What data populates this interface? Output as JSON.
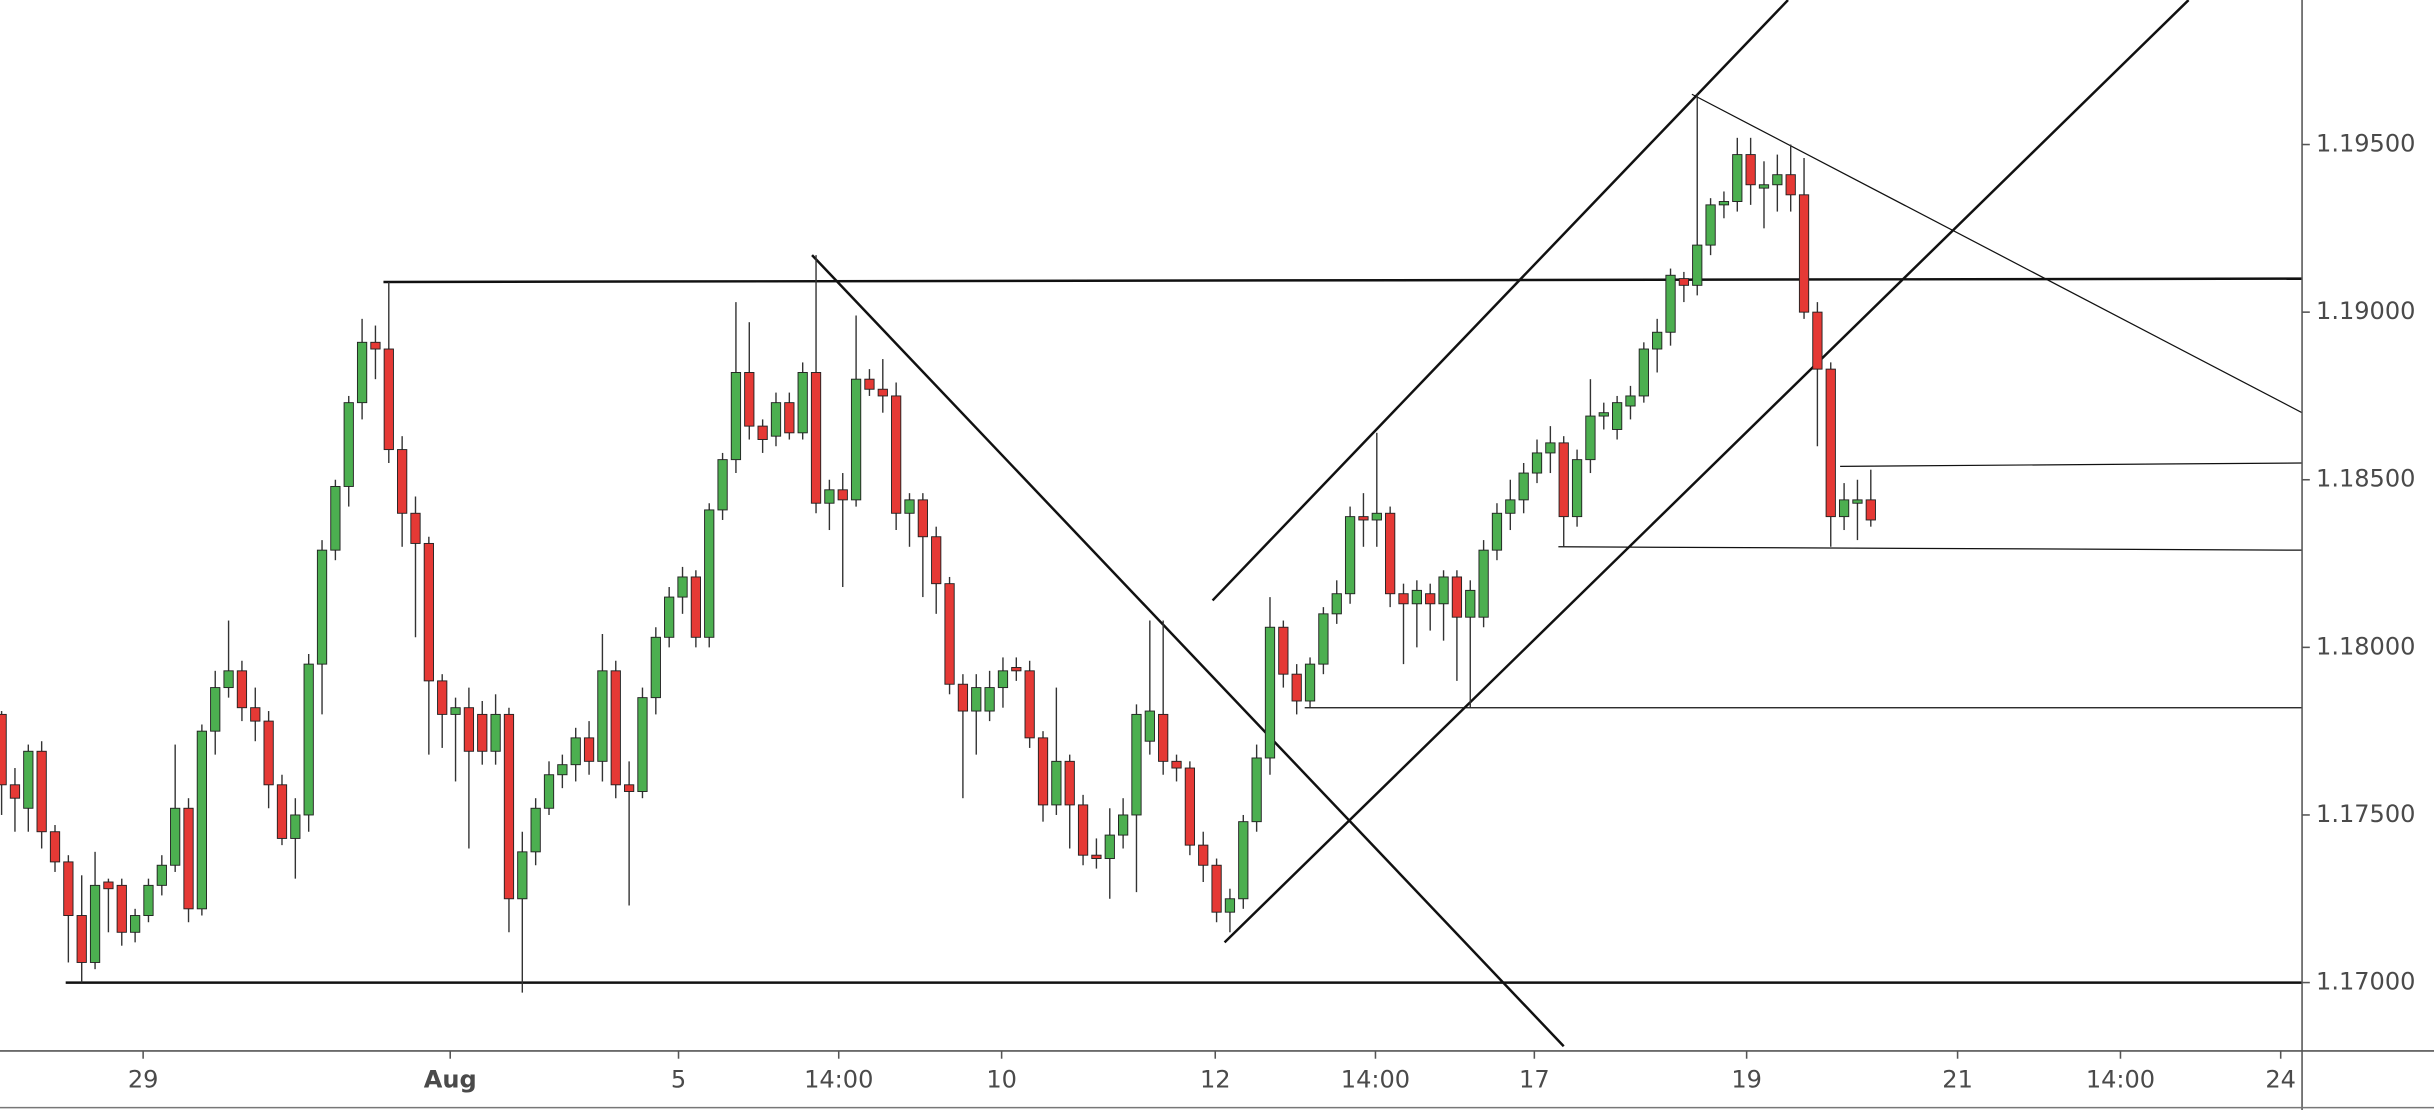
{
  "chart_data": {
    "type": "candlestick",
    "up_color": "#4caf50",
    "down_color": "#e53935",
    "open": [
      1.178,
      1.1759,
      1.1752,
      1.1769,
      1.1745,
      1.1736,
      1.172,
      1.1706,
      1.173,
      1.1729,
      1.1715,
      1.172,
      1.1729,
      1.1735,
      1.1752,
      1.1722,
      1.1775,
      1.1788,
      1.1793,
      1.1782,
      1.1778,
      1.1759,
      1.1743,
      1.175,
      1.1795,
      1.1829,
      1.1848,
      1.1873,
      1.1891,
      1.1889,
      1.1859,
      1.184,
      1.1831,
      1.179,
      1.178,
      1.1782,
      1.178,
      1.1769,
      1.178,
      1.1725,
      1.1739,
      1.1752,
      1.1762,
      1.1765,
      1.1773,
      1.1766,
      1.1793,
      1.1759,
      1.1757,
      1.1785,
      1.1803,
      1.1815,
      1.1821,
      1.1803,
      1.1841,
      1.1856,
      1.1882,
      1.1866,
      1.1863,
      1.1873,
      1.1864,
      1.1882,
      1.1843,
      1.1847,
      1.1844,
      1.188,
      1.1877,
      1.1875,
      1.184,
      1.1844,
      1.1833,
      1.1819,
      1.1789,
      1.1781,
      1.1781,
      1.1788,
      1.1794,
      1.1793,
      1.1773,
      1.1753,
      1.1766,
      1.1753,
      1.1738,
      1.1737,
      1.1744,
      1.175,
      1.1772,
      1.178,
      1.1766,
      1.1764,
      1.1741,
      1.1735,
      1.1721,
      1.1725,
      1.1748,
      1.1767,
      1.1806,
      1.1792,
      1.1784,
      1.1795,
      1.181,
      1.1816,
      1.1839,
      1.1838,
      1.184,
      1.1816,
      1.1813,
      1.1816,
      1.1813,
      1.1821,
      1.1809,
      1.1809,
      1.1829,
      1.184,
      1.1844,
      1.1852,
      1.1858,
      1.1861,
      1.1839,
      1.1856,
      1.1869,
      1.1865,
      1.1872,
      1.1875,
      1.1889,
      1.1894,
      1.191,
      1.1908,
      1.192,
      1.1932,
      1.1933,
      1.1947,
      1.1937,
      1.1938,
      1.1941,
      1.1935,
      1.19,
      1.1883,
      1.1839,
      1.1843,
      1.1844
    ],
    "high": [
      1.1781,
      1.1764,
      1.1771,
      1.1772,
      1.1747,
      1.1738,
      1.1732,
      1.1739,
      1.1731,
      1.1731,
      1.1722,
      1.1731,
      1.1738,
      1.1771,
      1.1755,
      1.1777,
      1.1793,
      1.1808,
      1.1796,
      1.1788,
      1.1781,
      1.1762,
      1.1755,
      1.1798,
      1.1832,
      1.185,
      1.1875,
      1.1898,
      1.1896,
      1.1909,
      1.1863,
      1.1845,
      1.1833,
      1.1792,
      1.1785,
      1.1788,
      1.1784,
      1.1786,
      1.1782,
      1.1745,
      1.1755,
      1.1766,
      1.1768,
      1.1776,
      1.1778,
      1.1804,
      1.1796,
      1.1766,
      1.1788,
      1.1806,
      1.1818,
      1.1824,
      1.1823,
      1.1843,
      1.1858,
      1.1903,
      1.1897,
      1.1868,
      1.1876,
      1.1876,
      1.1885,
      1.1917,
      1.185,
      1.1852,
      1.1899,
      1.1883,
      1.1886,
      1.1879,
      1.1846,
      1.1846,
      1.1836,
      1.1821,
      1.1792,
      1.1792,
      1.1793,
      1.1797,
      1.1797,
      1.1796,
      1.1775,
      1.1788,
      1.1768,
      1.1756,
      1.1743,
      1.1752,
      1.1755,
      1.1783,
      1.1808,
      1.1808,
      1.1768,
      1.1766,
      1.1745,
      1.1737,
      1.1728,
      1.175,
      1.1771,
      1.1815,
      1.1808,
      1.1795,
      1.1797,
      1.1812,
      1.182,
      1.1842,
      1.1846,
      1.1864,
      1.1842,
      1.1819,
      1.182,
      1.1819,
      1.1823,
      1.1823,
      1.182,
      1.1832,
      1.1843,
      1.185,
      1.1855,
      1.1862,
      1.1866,
      1.1863,
      1.1859,
      1.188,
      1.1873,
      1.1875,
      1.1878,
      1.1891,
      1.1898,
      1.1913,
      1.1912,
      1.1965,
      1.1934,
      1.1936,
      1.1952,
      1.1952,
      1.1945,
      1.1947,
      1.195,
      1.1946,
      1.1903,
      1.1885,
      1.1849,
      1.185,
      1.1853
    ],
    "low": [
      1.175,
      1.1745,
      1.1745,
      1.174,
      1.1733,
      1.1706,
      1.17,
      1.1704,
      1.1715,
      1.1711,
      1.1712,
      1.1718,
      1.1726,
      1.1733,
      1.1718,
      1.172,
      1.1768,
      1.1785,
      1.1778,
      1.1772,
      1.1752,
      1.1741,
      1.1731,
      1.1745,
      1.178,
      1.1826,
      1.1842,
      1.1868,
      1.188,
      1.1855,
      1.183,
      1.1803,
      1.1768,
      1.177,
      1.176,
      1.174,
      1.1765,
      1.1765,
      1.1715,
      1.1697,
      1.1735,
      1.175,
      1.1758,
      1.176,
      1.1762,
      1.176,
      1.1755,
      1.1723,
      1.1755,
      1.178,
      1.18,
      1.181,
      1.18,
      1.18,
      1.1838,
      1.1852,
      1.1862,
      1.1858,
      1.186,
      1.1862,
      1.1862,
      1.184,
      1.1835,
      1.1818,
      1.1842,
      1.1875,
      1.187,
      1.1835,
      1.183,
      1.1815,
      1.181,
      1.1786,
      1.1755,
      1.1768,
      1.1778,
      1.1782,
      1.179,
      1.177,
      1.1748,
      1.175,
      1.174,
      1.1735,
      1.1734,
      1.1725,
      1.174,
      1.1727,
      1.1768,
      1.1762,
      1.176,
      1.1738,
      1.173,
      1.1718,
      1.1715,
      1.1722,
      1.1745,
      1.1762,
      1.1788,
      1.178,
      1.1782,
      1.1792,
      1.1807,
      1.1813,
      1.183,
      1.183,
      1.1812,
      1.1795,
      1.18,
      1.1805,
      1.1802,
      1.179,
      1.1782,
      1.1806,
      1.1826,
      1.1835,
      1.184,
      1.1849,
      1.1852,
      1.183,
      1.1836,
      1.1852,
      1.1865,
      1.1862,
      1.1868,
      1.1873,
      1.1882,
      1.189,
      1.1903,
      1.1905,
      1.1917,
      1.1928,
      1.193,
      1.1932,
      1.1925,
      1.193,
      1.193,
      1.1898,
      1.186,
      1.183,
      1.1835,
      1.1832,
      1.1836
    ],
    "close": [
      1.1759,
      1.1755,
      1.1769,
      1.1745,
      1.1736,
      1.172,
      1.1706,
      1.1729,
      1.1728,
      1.1715,
      1.172,
      1.1729,
      1.1735,
      1.1752,
      1.1722,
      1.1775,
      1.1788,
      1.1793,
      1.1782,
      1.1778,
      1.1759,
      1.1743,
      1.175,
      1.1795,
      1.1829,
      1.1848,
      1.1873,
      1.1891,
      1.1889,
      1.1859,
      1.184,
      1.1831,
      1.179,
      1.178,
      1.1782,
      1.1769,
      1.1769,
      1.178,
      1.1725,
      1.1739,
      1.1752,
      1.1762,
      1.1765,
      1.1773,
      1.1766,
      1.1793,
      1.1759,
      1.1757,
      1.1785,
      1.1803,
      1.1815,
      1.1821,
      1.1803,
      1.1841,
      1.1856,
      1.1882,
      1.1866,
      1.1862,
      1.1873,
      1.1864,
      1.1882,
      1.1843,
      1.1847,
      1.1844,
      1.188,
      1.1877,
      1.1875,
      1.184,
      1.1844,
      1.1833,
      1.1819,
      1.1789,
      1.1781,
      1.1788,
      1.1788,
      1.1793,
      1.1793,
      1.1773,
      1.1753,
      1.1766,
      1.1753,
      1.1738,
      1.1737,
      1.1744,
      1.175,
      1.178,
      1.1781,
      1.1766,
      1.1764,
      1.1741,
      1.1735,
      1.1721,
      1.1725,
      1.1748,
      1.1767,
      1.1806,
      1.1792,
      1.1784,
      1.1795,
      1.181,
      1.1816,
      1.1839,
      1.1838,
      1.184,
      1.1816,
      1.1813,
      1.1817,
      1.1813,
      1.1821,
      1.1809,
      1.1817,
      1.1829,
      1.184,
      1.1844,
      1.1852,
      1.1858,
      1.1861,
      1.1839,
      1.1856,
      1.1869,
      1.187,
      1.1873,
      1.1875,
      1.1889,
      1.1894,
      1.1911,
      1.1908,
      1.192,
      1.1932,
      1.1933,
      1.1947,
      1.1938,
      1.1938,
      1.1941,
      1.1935,
      1.19,
      1.1883,
      1.1839,
      1.1844,
      1.1844,
      1.1838
    ],
    "xlim": [
      -0.12,
      172.3
    ],
    "ylim": [
      1.16796,
      1.19931
    ],
    "yticks": [
      {
        "value": 1.17,
        "label": "1.17000"
      },
      {
        "value": 1.175,
        "label": "1.17500"
      },
      {
        "value": 1.18,
        "label": "1.18000"
      },
      {
        "value": 1.185,
        "label": "1.18500"
      },
      {
        "value": 1.19,
        "label": "1.19000"
      },
      {
        "value": 1.195,
        "label": "1.19500"
      }
    ],
    "xticks": [
      {
        "value": 10.6,
        "label": "29"
      },
      {
        "value": 33.6,
        "label": "Aug"
      },
      {
        "value": 50.7,
        "label": "5"
      },
      {
        "value": 62.7,
        "label": "14:00"
      },
      {
        "value": 74.9,
        "label": "10"
      },
      {
        "value": 90.9,
        "label": "12"
      },
      {
        "value": 102.9,
        "label": "14:00"
      },
      {
        "value": 114.8,
        "label": "17"
      },
      {
        "value": 130.7,
        "label": "19"
      },
      {
        "value": 146.5,
        "label": "21"
      },
      {
        "value": 158.7,
        "label": "14:00"
      },
      {
        "value": 170.7,
        "label": "24"
      }
    ],
    "drawings": [
      {
        "x": [
          28.6,
          172.3
        ],
        "y": [
          1.1909,
          1.191
        ]
      },
      {
        "x": [
          4.8,
          172.3
        ],
        "y": [
          1.17,
          1.17
        ]
      },
      {
        "x": [
          60.7,
          117.0
        ],
        "y": [
          1.1917,
          1.1681
        ]
      },
      {
        "x": [
          91.6,
          163.8
        ],
        "y": [
          1.1712,
          1.19931
        ]
      },
      {
        "x": [
          90.7,
          133.8
        ],
        "y": [
          1.1814,
          1.19931
        ]
      },
      {
        "x": [
          126.6,
          172.3
        ],
        "y": [
          1.1965,
          1.187
        ]
      },
      {
        "x": [
          116.6,
          172.3
        ],
        "y": [
          1.183,
          1.1829
        ]
      },
      {
        "x": [
          97.6,
          172.3
        ],
        "y": [
          1.1782,
          1.1782
        ]
      },
      {
        "x": [
          137.7,
          172.3
        ],
        "y": [
          1.1854,
          1.1855
        ]
      }
    ]
  }
}
